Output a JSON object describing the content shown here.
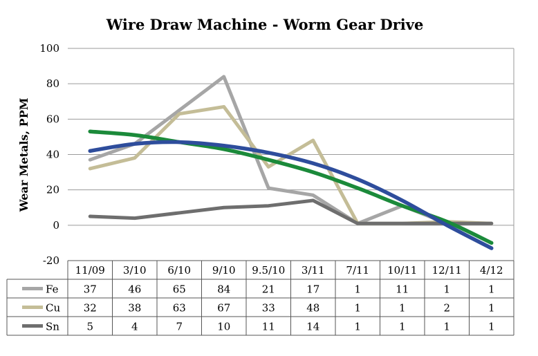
{
  "chart_data": {
    "type": "line",
    "title": "Wire Draw Machine - Worm Gear Drive",
    "xlabel": "",
    "ylabel": "Wear Metals, PPM",
    "ylim": [
      -20,
      100
    ],
    "yticks": [
      -20,
      0,
      20,
      40,
      60,
      80,
      100
    ],
    "grid": true,
    "legend": "data table below chart",
    "categories": [
      "11/09",
      "3/10",
      "6/10",
      "9/10",
      "9.5/10",
      "3/11",
      "7/11",
      "10/11",
      "12/11",
      "4/12"
    ],
    "series": [
      {
        "name": "Fe",
        "color": "#a6a6a6",
        "values": [
          37,
          46,
          65,
          84,
          21,
          17,
          1,
          11,
          1,
          1
        ]
      },
      {
        "name": "Cu",
        "color": "#c4bd97",
        "values": [
          32,
          38,
          63,
          67,
          33,
          48,
          1,
          1,
          2,
          1
        ]
      },
      {
        "name": "Sn",
        "color": "#6e6e6e",
        "values": [
          5,
          4,
          7,
          10,
          11,
          14,
          1,
          1,
          1,
          1
        ]
      }
    ],
    "trendlines": [
      {
        "color": "#1b8a3a",
        "values": [
          53,
          51,
          47,
          43,
          37,
          30,
          21,
          11,
          2,
          -10
        ]
      },
      {
        "color": "#2e4d9c",
        "values": [
          42,
          46,
          47,
          45,
          41,
          35,
          26,
          14,
          0,
          -13
        ]
      }
    ]
  }
}
